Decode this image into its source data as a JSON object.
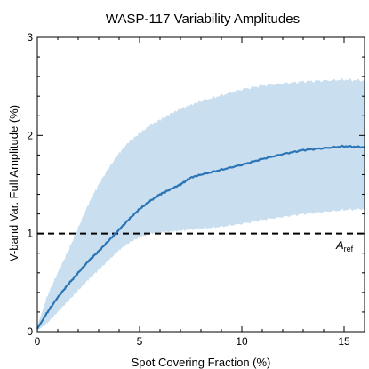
{
  "chart_data": {
    "type": "line",
    "title": "WASP-117 Variability Amplitudes",
    "xlabel": "Spot Covering Fraction  (%)",
    "ylabel": "V-band Var. Full Amplitude  (%)",
    "xlim": [
      0,
      16
    ],
    "ylim": [
      0,
      3
    ],
    "x_ticks": [
      0,
      5,
      10,
      15
    ],
    "y_ticks": [
      0,
      1,
      2,
      3
    ],
    "grid": false,
    "colors": {
      "line": "#2b74b5",
      "band": "#c9dff0",
      "ref_line": "#000000"
    },
    "series": [
      {
        "x": [
          0,
          0.5,
          1,
          1.5,
          2,
          2.5,
          3,
          3.5,
          4,
          4.5,
          5,
          5.5,
          6,
          6.5,
          7,
          7.5,
          8,
          9,
          10,
          11,
          12,
          13,
          14,
          15,
          16
        ],
        "y": [
          0.03,
          0.2,
          0.35,
          0.48,
          0.6,
          0.72,
          0.82,
          0.93,
          1.04,
          1.15,
          1.25,
          1.33,
          1.4,
          1.45,
          1.5,
          1.57,
          1.6,
          1.65,
          1.7,
          1.76,
          1.81,
          1.85,
          1.87,
          1.89,
          1.88
        ],
        "upper": [
          0.06,
          0.37,
          0.6,
          0.82,
          1.06,
          1.3,
          1.5,
          1.67,
          1.82,
          1.94,
          2.02,
          2.1,
          2.16,
          2.22,
          2.27,
          2.31,
          2.35,
          2.41,
          2.47,
          2.51,
          2.53,
          2.55,
          2.56,
          2.57,
          2.56
        ],
        "lower": [
          0.01,
          0.09,
          0.2,
          0.31,
          0.42,
          0.53,
          0.63,
          0.73,
          0.83,
          0.91,
          0.96,
          1.0,
          1.01,
          1.02,
          1.03,
          1.04,
          1.05,
          1.07,
          1.1,
          1.14,
          1.17,
          1.2,
          1.22,
          1.24,
          1.25
        ]
      }
    ],
    "reference_line": {
      "y": 1.0,
      "style": "dashed",
      "label": "A",
      "label_sub": "ref"
    }
  }
}
